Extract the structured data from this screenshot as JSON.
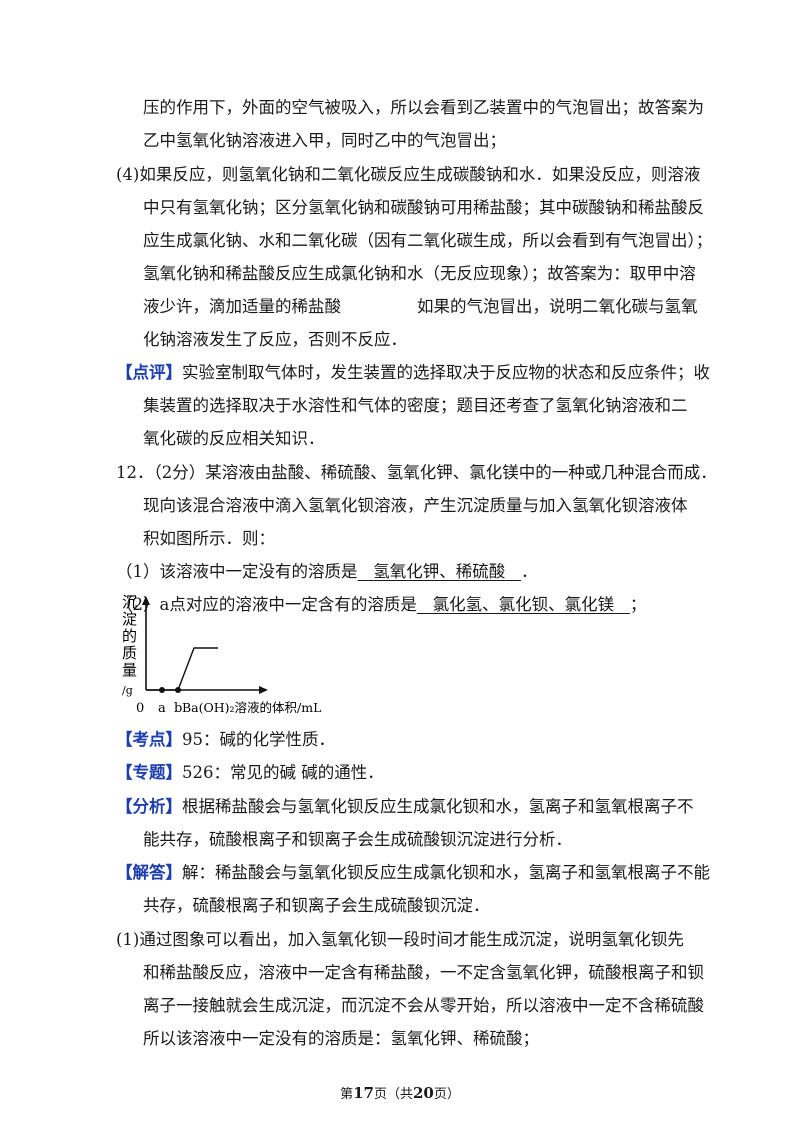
{
  "p1": {
    "l1": "压的作用下，外面的空气被吸入，所以会看到乙装置中的气泡冒出；故答案为",
    "l2": "乙中氢氧化钠溶液进入甲，同时乙中的气泡冒出；"
  },
  "p2": {
    "l1": "(4)如果反应，则氢氧化钠和二氧化碳反应生成碳酸钠和水．如果没反应，则溶液",
    "l2": "中只有氢氧化钠；区分氢氧化钠和碳酸钠可用稀盐酸；其中碳酸钠和稀盐酸反",
    "l3": "应生成氯化钠、水和二氧化碳（因有二氧化碳生成，所以会看到有气泡冒出）；",
    "l4": "氢氧化钠和稀盐酸反应生成氯化钠和水（无反应现象）；故答案为：取甲中溶",
    "l5a": "液少许，滴加适量的稀盐酸",
    "l5b": "如果的气泡冒出，说明二氧化碳与氢氧",
    "l6": "化钠溶液发生了反应，否则不反应．"
  },
  "review": {
    "tag": "【点评】",
    "l1": "实验室制取气体时，发生装置的选择取决于反应物的状态和反应条件；收",
    "l2": "集装置的选择取决于水溶性和气体的密度；题目还考查了氢氧化钠溶液和二",
    "l3": "氧化碳的反应相关知识．"
  },
  "q12": {
    "l1": "12．（2分）某溶液由盐酸、稀硫酸、氢氧化钾、氯化镁中的一种或几种混合而成．",
    "l2": "现向该混合溶液中滴入氢氧化钡溶液，产生沉淀质量与加入氢氧化钡溶液体",
    "l3": "积如图所示．则：",
    "s1_pre": "（1）该溶液中一定没有的溶质是",
    "s1_ans": "氢氧化钾、稀硫酸",
    "s1_post": "．",
    "s2_pre": "（2）a点对应的溶液中一定含有的溶质是",
    "s2_ans": "氯化氢、氯化钡、氯化镁",
    "s2_post": "；"
  },
  "chart_data": {
    "type": "line",
    "ylabel_chars": [
      "沉",
      "淀",
      "的",
      "质",
      "量"
    ],
    "ylabel_unit": "/g",
    "xlabel": "Ba(OH)₂溶液的体积/mL",
    "origin_label": "0",
    "x_tick_labels": [
      "a",
      "b"
    ],
    "series": [
      {
        "points": [
          [
            0,
            0
          ],
          [
            1,
            0
          ],
          [
            2,
            0
          ],
          [
            3,
            1
          ],
          [
            4.5,
            1
          ]
        ]
      }
    ],
    "marked_points": [
      "a",
      "b"
    ]
  },
  "kaodian": {
    "tag": "【考点】",
    "text": "95：碱的化学性质．"
  },
  "zhuanti": {
    "tag": "【专题】",
    "text": "526：常见的碱 碱的通性．"
  },
  "analysis": {
    "tag": "【分析】",
    "l1": "根据稀盐酸会与氢氧化钡反应生成氯化钡和水，氢离子和氢氧根离子不",
    "l2": "能共存，硫酸根离子和钡离子会生成硫酸钡沉淀进行分析．"
  },
  "solution": {
    "tag": "【解答】",
    "l1": "解：稀盐酸会与氢氧化钡反应生成氯化钡和水，氢离子和氢氧根离子不能",
    "l2": "共存，硫酸根离子和钡离子会生成硫酸钡沉淀．",
    "l3": "(1)通过图象可以看出，加入氢氧化钡一段时间才能生成沉淀，说明氢氧化钡先",
    "l4": "和稀盐酸反应，溶液中一定含有稀盐酸，一不定含氢氧化钾，硫酸根离子和钡",
    "l5": "离子一接触就会生成沉淀，而沉淀不会从零开始，所以溶液中一定不含稀硫酸",
    "l6": "所以该溶液中一定没有的溶质是：氢氧化钾、稀硫酸；"
  },
  "footer": {
    "pre": "第",
    "page": "17",
    "mid": "页（共",
    "total": "20",
    "post": "页）"
  }
}
